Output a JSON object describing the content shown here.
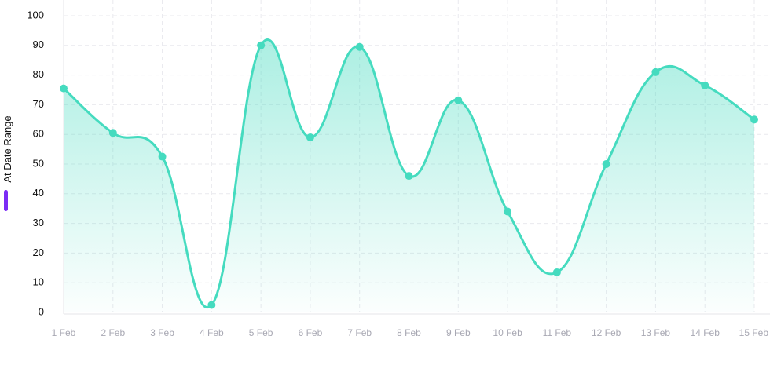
{
  "chart_data": {
    "type": "area",
    "categories": [
      "1 Feb",
      "2 Feb",
      "3 Feb",
      "4 Feb",
      "5 Feb",
      "6 Feb",
      "7 Feb",
      "8 Feb",
      "9 Feb",
      "10 Feb",
      "11 Feb",
      "12 Feb",
      "13 Feb",
      "14 Feb",
      "15 Feb"
    ],
    "series": [
      {
        "values": [
          75.5,
          60.5,
          52.5,
          2.5,
          90,
          59,
          89.5,
          46,
          71.5,
          34,
          13.5,
          50,
          81,
          76.5,
          65
        ]
      }
    ],
    "ylabel": "At Date Range",
    "xlabel": "",
    "ylim": [
      0,
      100
    ],
    "yticks": [
      0,
      10,
      20,
      30,
      40,
      50,
      60,
      70,
      80,
      90,
      100
    ],
    "grid": true,
    "smooth": true,
    "colors": {
      "line": "#45dbbf",
      "marker": "#45dbbf",
      "fill_top": "#45dbbf",
      "legend_marker": "#7b2cf5"
    }
  }
}
